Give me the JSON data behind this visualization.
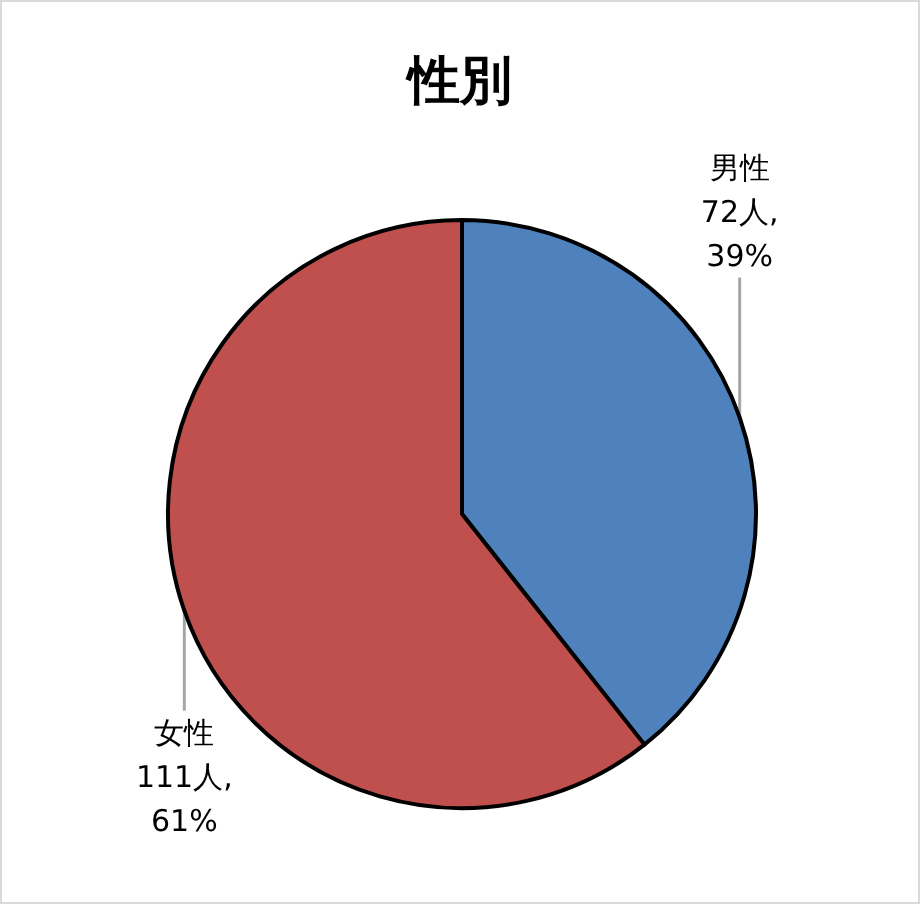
{
  "chart_data": {
    "type": "pie",
    "title": "性別",
    "categories": [
      "男性",
      "女性"
    ],
    "values": [
      72,
      111
    ],
    "colors": [
      "#4f81bd",
      "#c0504d"
    ],
    "value_labels": [
      "72人,\n39%",
      "111人,\n61%"
    ]
  }
}
